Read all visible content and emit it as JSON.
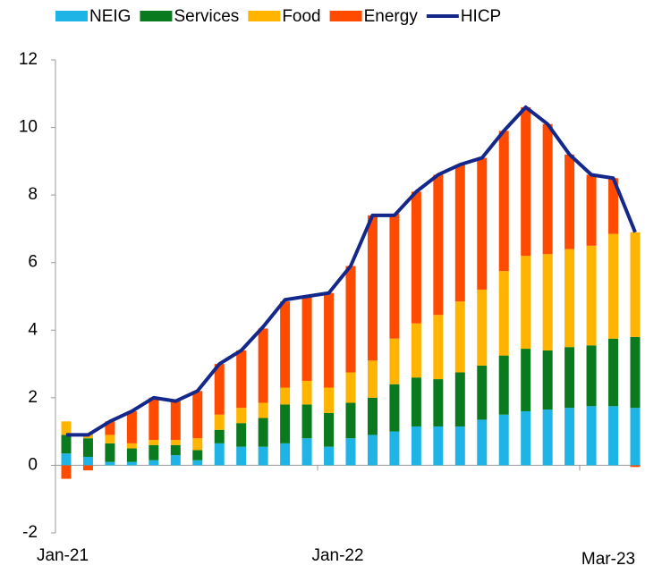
{
  "chart_data": {
    "type": "stacked-bar-line",
    "categories": [
      "Jan-21",
      null,
      null,
      null,
      null,
      null,
      null,
      null,
      null,
      null,
      null,
      null,
      "Jan-22",
      null,
      null,
      null,
      null,
      null,
      null,
      null,
      null,
      null,
      null,
      null,
      null,
      null,
      "Mar-23"
    ],
    "series": [
      {
        "name": "NEIG",
        "color": "#1fb4e6",
        "kind": "bar",
        "values": [
          0.35,
          0.25,
          0.1,
          0.1,
          0.15,
          0.3,
          0.15,
          0.65,
          0.55,
          0.55,
          0.65,
          0.8,
          0.55,
          0.8,
          0.9,
          1.0,
          1.15,
          1.15,
          1.15,
          1.35,
          1.5,
          1.6,
          1.65,
          1.7,
          1.75,
          1.75,
          1.7
        ]
      },
      {
        "name": "Services",
        "color": "#0a7a1e",
        "kind": "bar",
        "values": [
          0.55,
          0.55,
          0.55,
          0.4,
          0.45,
          0.3,
          0.3,
          0.4,
          0.7,
          0.85,
          1.15,
          1.0,
          1.0,
          1.05,
          1.1,
          1.4,
          1.45,
          1.4,
          1.6,
          1.6,
          1.75,
          1.85,
          1.75,
          1.8,
          1.8,
          2.0,
          2.1
        ]
      },
      {
        "name": "Food",
        "color": "#ffb400",
        "kind": "bar",
        "values": [
          0.4,
          0.15,
          0.25,
          0.15,
          0.15,
          0.15,
          0.35,
          0.45,
          0.45,
          0.45,
          0.5,
          0.7,
          0.75,
          0.9,
          1.1,
          1.35,
          1.6,
          1.9,
          2.1,
          2.25,
          2.5,
          2.75,
          2.85,
          2.9,
          2.95,
          3.1,
          3.1
        ]
      },
      {
        "name": "Energy",
        "color": "#ff4b00",
        "kind": "bar",
        "values": [
          -0.4,
          -0.15,
          0.4,
          0.95,
          1.25,
          1.15,
          1.4,
          1.5,
          1.7,
          2.2,
          2.55,
          2.5,
          2.8,
          3.15,
          4.3,
          3.7,
          3.9,
          4.15,
          4.05,
          3.9,
          4.15,
          4.4,
          3.85,
          2.8,
          2.1,
          1.65,
          -0.05
        ]
      },
      {
        "name": "HICP",
        "color": "#14288c",
        "kind": "line",
        "values": [
          0.9,
          0.9,
          1.3,
          1.6,
          2.0,
          1.9,
          2.2,
          3.0,
          3.4,
          4.1,
          4.9,
          5.0,
          5.1,
          5.9,
          7.4,
          7.4,
          8.1,
          8.6,
          8.9,
          9.1,
          9.9,
          10.6,
          10.1,
          9.2,
          8.6,
          8.5,
          6.9
        ]
      }
    ],
    "ylim": [
      -2,
      12
    ],
    "yticks": [
      -2,
      0,
      2,
      4,
      6,
      8,
      10,
      12
    ]
  }
}
